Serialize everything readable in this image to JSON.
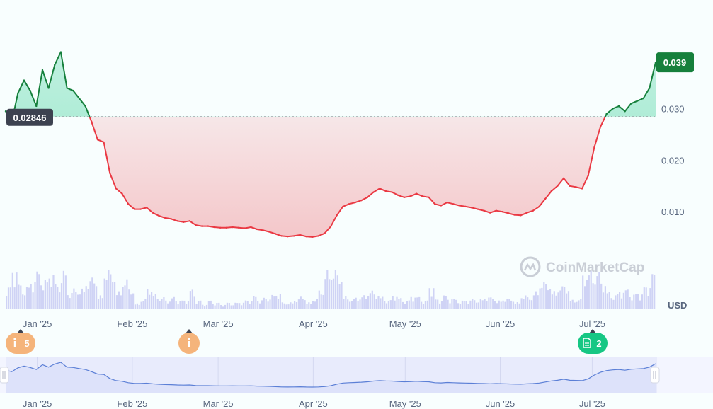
{
  "colors": {
    "up": "#16803c",
    "up_fill": "#bff0d6",
    "down": "#ea3943",
    "down_fill": "#f3c4c4",
    "reference": "#9aa0a6",
    "volume": "#cfd3f5",
    "navigator_line": "#5b7fd6",
    "navigator_fill": "#e6e9fb",
    "event_orange": "#f5b47b",
    "event_green": "#16c784"
  },
  "watermark": "CoinMarketCap",
  "currency_label": "USD",
  "price_badge": "0.039",
  "reference_badge": "0.02846",
  "events": [
    {
      "month": "Jan '25",
      "label": "5",
      "icon": "info-icon",
      "color": "orange"
    },
    {
      "month": "Mar '25",
      "label": "",
      "icon": "info-icon",
      "color": "orange"
    },
    {
      "month": "Jul '25",
      "label": "2",
      "icon": "document-icon",
      "color": "green"
    }
  ],
  "chart_data": {
    "type": "area",
    "x_axis_labels": [
      "Jan '25",
      "Feb '25",
      "Mar '25",
      "Apr '25",
      "May '25",
      "Jun '25",
      "Jul '25"
    ],
    "y_ticks": [
      "0.010",
      "0.020",
      "0.030"
    ],
    "ylim": [
      0,
      0.045
    ],
    "reference_value": 0.02846,
    "current_value": 0.039,
    "series": [
      {
        "x": [
          "2024-12-24",
          "2024-12-26",
          "2024-12-28",
          "2024-12-30",
          "2025-01-01",
          "2025-01-03",
          "2025-01-05",
          "2025-01-07",
          "2025-01-09",
          "2025-01-11",
          "2025-01-13",
          "2025-01-15",
          "2025-01-17",
          "2025-01-19",
          "2025-01-21",
          "2025-01-23",
          "2025-01-25",
          "2025-01-27",
          "2025-01-29",
          "2025-01-31",
          "2025-02-02",
          "2025-02-04",
          "2025-02-06",
          "2025-02-08",
          "2025-02-10",
          "2025-02-12",
          "2025-02-14",
          "2025-02-16",
          "2025-02-18",
          "2025-02-20",
          "2025-02-22",
          "2025-02-24",
          "2025-02-26",
          "2025-02-28",
          "2025-03-02",
          "2025-03-04",
          "2025-03-06",
          "2025-03-08",
          "2025-03-10",
          "2025-03-12",
          "2025-03-14",
          "2025-03-16",
          "2025-03-18",
          "2025-03-20",
          "2025-03-22",
          "2025-03-24",
          "2025-03-26",
          "2025-03-28",
          "2025-03-30",
          "2025-04-01",
          "2025-04-03",
          "2025-04-05",
          "2025-04-07",
          "2025-04-09",
          "2025-04-11",
          "2025-04-13",
          "2025-04-15",
          "2025-04-17",
          "2025-04-19",
          "2025-04-21",
          "2025-04-23",
          "2025-04-25",
          "2025-04-27",
          "2025-04-29",
          "2025-05-01",
          "2025-05-03",
          "2025-05-05",
          "2025-05-07",
          "2025-05-09",
          "2025-05-11",
          "2025-05-13",
          "2025-05-15",
          "2025-05-17",
          "2025-05-19",
          "2025-05-21",
          "2025-05-23",
          "2025-05-25",
          "2025-05-27",
          "2025-05-29",
          "2025-05-31",
          "2025-06-02",
          "2025-06-04",
          "2025-06-06",
          "2025-06-08",
          "2025-06-10",
          "2025-06-12",
          "2025-06-14",
          "2025-06-16",
          "2025-06-18",
          "2025-06-20",
          "2025-06-22",
          "2025-06-24",
          "2025-06-26",
          "2025-06-28",
          "2025-06-30",
          "2025-07-02",
          "2025-07-04",
          "2025-07-06",
          "2025-07-08",
          "2025-07-10",
          "2025-07-12",
          "2025-07-14",
          "2025-07-16",
          "2025-07-18",
          "2025-07-20",
          "2025-07-22",
          "2025-07-24"
        ],
        "values": [
          0.0295,
          0.0275,
          0.033,
          0.0355,
          0.0335,
          0.0305,
          0.0375,
          0.034,
          0.0385,
          0.041,
          0.034,
          0.0335,
          0.032,
          0.0305,
          0.0275,
          0.024,
          0.0235,
          0.0175,
          0.0145,
          0.0135,
          0.0115,
          0.0105,
          0.0105,
          0.0108,
          0.0098,
          0.0092,
          0.0088,
          0.0086,
          0.0082,
          0.008,
          0.0082,
          0.0074,
          0.0072,
          0.0072,
          0.007,
          0.0069,
          0.0069,
          0.007,
          0.0069,
          0.0068,
          0.007,
          0.0066,
          0.0064,
          0.0061,
          0.0057,
          0.0053,
          0.0052,
          0.0053,
          0.0055,
          0.0052,
          0.0051,
          0.0053,
          0.0058,
          0.0071,
          0.0093,
          0.011,
          0.0115,
          0.0118,
          0.0122,
          0.0128,
          0.0138,
          0.0145,
          0.014,
          0.0138,
          0.0132,
          0.0128,
          0.013,
          0.0135,
          0.013,
          0.0128,
          0.0115,
          0.0112,
          0.0118,
          0.0115,
          0.0112,
          0.011,
          0.0108,
          0.0105,
          0.0102,
          0.0098,
          0.0102,
          0.01,
          0.0097,
          0.0094,
          0.0093,
          0.0098,
          0.0102,
          0.011,
          0.0125,
          0.014,
          0.015,
          0.0165,
          0.015,
          0.0148,
          0.0145,
          0.017,
          0.0225,
          0.0265,
          0.029,
          0.03,
          0.0305,
          0.0295,
          0.031,
          0.0315,
          0.032,
          0.034,
          0.039
        ]
      }
    ],
    "grid": false,
    "legend": "none"
  }
}
